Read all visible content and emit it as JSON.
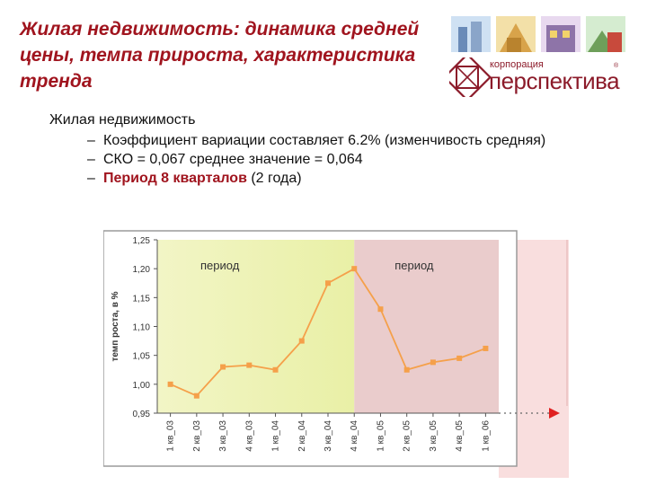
{
  "title": "Жилая недвижимость: динамика средней цены, темпа прироста, характеристика тренда",
  "logo": {
    "small": "корпорация",
    "big": "перспектива"
  },
  "bullets": {
    "main": "Жилая недвижимость",
    "items": [
      {
        "dash": "–",
        "text": "Коэффициент вариации составляет 6.2% (изменчивость средняя)"
      },
      {
        "dash": "–",
        "text": "СКО = 0,067 среднее значение = 0,064"
      },
      {
        "dash": "–",
        "bold": "Период 8 кварталов",
        "rest": " (2 года)"
      }
    ]
  },
  "chart_data": {
    "type": "line",
    "ylabel": "темп роста, в %",
    "xlabel": "",
    "ylim": [
      0.95,
      1.25
    ],
    "yticks": [
      "1,25",
      "1,20",
      "1,15",
      "1,10",
      "1,05",
      "1,00",
      "0,95"
    ],
    "categories": [
      "1 кв_03",
      "2 кв_03",
      "3 кв_03",
      "4 кв_03",
      "1 кв_04",
      "2 кв_04",
      "3 кв_04",
      "4 кв_04",
      "1 кв_05",
      "2 кв_05",
      "3 кв_05",
      "4 кв_05",
      "1 кв_06"
    ],
    "values": [
      1.0,
      0.98,
      1.03,
      1.033,
      1.025,
      1.075,
      1.175,
      1.2,
      1.13,
      1.025,
      1.038,
      1.045,
      1.062
    ],
    "periods": [
      {
        "label": "период",
        "from": "1 кв_03",
        "to": "4 кв_04",
        "color": "#e9f0a6"
      },
      {
        "label": "период",
        "from": "4 кв_04",
        "to": "1 кв_06",
        "color": "#e6c3c3"
      }
    ],
    "line_color": "#f5a04a",
    "grid": false
  }
}
